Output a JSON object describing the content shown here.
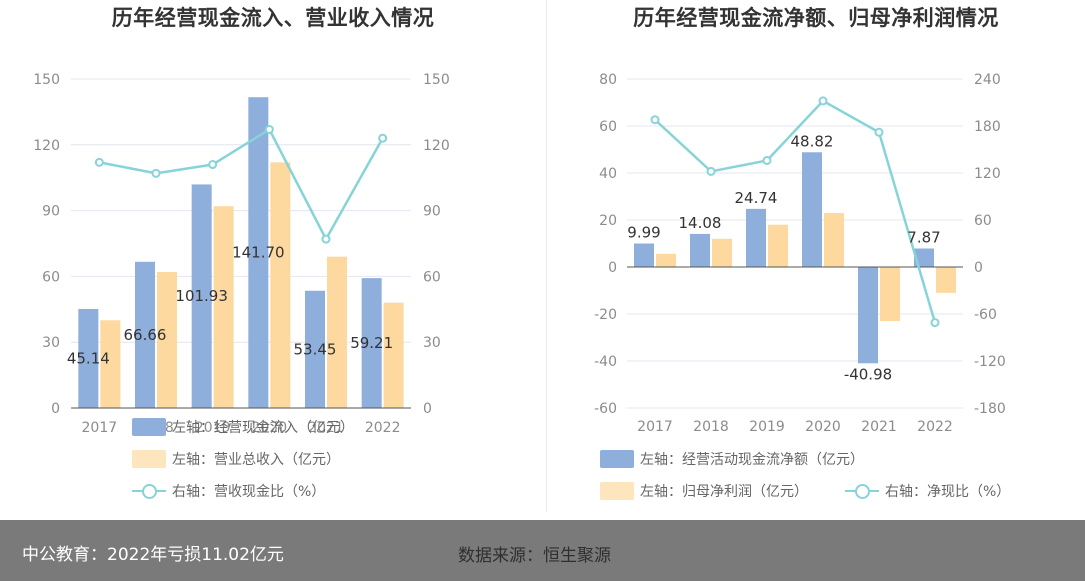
{
  "colors": {
    "bar_primary": "#8eaedc",
    "bar_secondary": "#fdd9a0",
    "line": "#86d4d8",
    "grid": "#e4e6f0",
    "footer_bg": "#7a7a7a"
  },
  "left_chart": {
    "title": "历年经营现金流入、营业收入情况",
    "legend": [
      {
        "label": "左轴：经营现金流入（亿元）",
        "kind": "bar",
        "color": "#8eaedc"
      },
      {
        "label": "左轴：营业总收入（亿元）",
        "kind": "bar",
        "color": "#fde5bd"
      },
      {
        "label": "右轴：营收现金比（%）",
        "kind": "line",
        "color": "#86d4d8"
      }
    ]
  },
  "right_chart": {
    "title": "历年经营现金流净额、归母净利润情况",
    "legend": [
      {
        "label": "左轴：经营活动现金流净额（亿元）",
        "kind": "bar",
        "color": "#8eaedc"
      },
      {
        "label": "左轴：归母净利润（亿元）",
        "kind": "bar",
        "color": "#fde5bd"
      },
      {
        "label": "右轴：净现比（%）",
        "kind": "line",
        "color": "#86d4d8"
      }
    ]
  },
  "footer": {
    "left_text": "中公教育：2022年亏损11.02亿元",
    "source_text": "数据来源：恒生聚源"
  },
  "chart_data": [
    {
      "type": "bar",
      "title": "历年经营现金流入、营业收入情况",
      "categories": [
        "2017",
        "2018",
        "2019",
        "2020",
        "2021",
        "2022"
      ],
      "series": [
        {
          "name": "左轴：经营现金流入（亿元）",
          "axis": "left",
          "values": [
            45.14,
            66.66,
            101.93,
            141.7,
            53.45,
            59.21
          ],
          "labels": [
            "45.14",
            "66.66",
            "101.93",
            "141.70",
            "53.45",
            "59.21"
          ]
        },
        {
          "name": "左轴：营业总收入（亿元）",
          "axis": "left",
          "values": [
            40.0,
            62.0,
            92.0,
            112.0,
            69.0,
            48.0
          ]
        },
        {
          "name": "右轴：营收现金比（%）",
          "axis": "right",
          "type": "line",
          "values": [
            112.0,
            107.0,
            111.0,
            127.0,
            77.0,
            123.0
          ]
        }
      ],
      "yleft": {
        "min": 0,
        "max": 150,
        "ticks": [
          0,
          30,
          60,
          90,
          120,
          150
        ]
      },
      "yright": {
        "min": 0,
        "max": 150,
        "ticks": [
          0,
          30,
          60,
          90,
          120,
          150
        ]
      },
      "grid": true,
      "legend_position": "bottom"
    },
    {
      "type": "bar",
      "title": "历年经营现金流净额、归母净利润情况",
      "categories": [
        "2017",
        "2018",
        "2019",
        "2020",
        "2021",
        "2022"
      ],
      "series": [
        {
          "name": "左轴：经营活动现金流净额（亿元）",
          "axis": "left",
          "values": [
            9.99,
            14.08,
            24.74,
            48.82,
            -40.98,
            7.87
          ],
          "labels": [
            "9.99",
            "14.08",
            "24.74",
            "48.82",
            "-40.98",
            "7.87"
          ]
        },
        {
          "name": "左轴：归母净利润（亿元）",
          "axis": "left",
          "values": [
            5.6,
            12.0,
            18.0,
            23.0,
            -23.0,
            -11.0
          ]
        },
        {
          "name": "右轴：净现比（%）",
          "axis": "right",
          "type": "line",
          "values": [
            188.0,
            122.0,
            136.0,
            212.0,
            172.0,
            -71.0
          ]
        }
      ],
      "yleft": {
        "min": -60,
        "max": 80,
        "ticks": [
          -60,
          -40,
          -20,
          0,
          20,
          40,
          60,
          80
        ]
      },
      "yright": {
        "min": -180,
        "max": 240,
        "ticks": [
          -180,
          -120,
          -60,
          0,
          60,
          120,
          180,
          240
        ]
      },
      "grid": true,
      "legend_position": "bottom"
    }
  ]
}
